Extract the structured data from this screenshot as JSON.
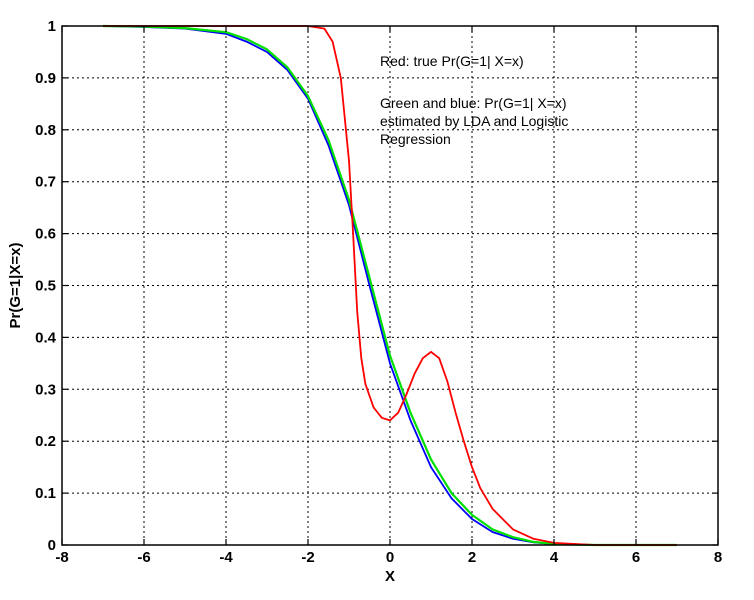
{
  "chart_data": {
    "type": "line",
    "title": "",
    "xlabel": "X",
    "ylabel": "Pr(G=1|X=x)",
    "xlim": [
      -8,
      8
    ],
    "ylim": [
      0,
      1
    ],
    "grid": true,
    "x_ticks": [
      -8,
      -6,
      -4,
      -2,
      0,
      2,
      4,
      6,
      8
    ],
    "y_ticks": [
      0,
      0.1,
      0.2,
      0.3,
      0.4,
      0.5,
      0.6,
      0.7,
      0.8,
      0.9,
      1
    ],
    "annotations": [
      "Red: true Pr(G=1| X=x)",
      "Green and blue: Pr(G=1| X=x)",
      "estimated by LDA and Logistic",
      "Regression"
    ],
    "series": [
      {
        "color": "#ff0000",
        "x": [
          -7,
          -6,
          -5,
          -4,
          -3,
          -2,
          -1.6,
          -1.4,
          -1.2,
          -1.0,
          -0.9,
          -0.8,
          -0.7,
          -0.6,
          -0.4,
          -0.2,
          0,
          0.2,
          0.4,
          0.6,
          0.8,
          1.0,
          1.2,
          1.4,
          1.6,
          1.8,
          2.0,
          2.2,
          2.5,
          3.0,
          3.5,
          4.0,
          5.0,
          6.0,
          7.0
        ],
        "y": [
          1.0,
          1.0,
          1.0,
          1.0,
          1.0,
          1.0,
          0.995,
          0.97,
          0.9,
          0.74,
          0.6,
          0.45,
          0.36,
          0.31,
          0.265,
          0.245,
          0.24,
          0.255,
          0.29,
          0.33,
          0.36,
          0.372,
          0.36,
          0.315,
          0.255,
          0.2,
          0.15,
          0.11,
          0.07,
          0.03,
          0.012,
          0.004,
          0.0,
          0.0,
          0.0
        ]
      },
      {
        "color": "#0000ff",
        "x": [
          -7,
          -6,
          -5,
          -4,
          -3.5,
          -3,
          -2.5,
          -2,
          -1.5,
          -1,
          -0.5,
          0,
          0.5,
          1,
          1.5,
          2,
          2.5,
          3,
          3.5,
          4,
          5,
          6,
          7
        ],
        "y": [
          1.0,
          0.998,
          0.995,
          0.985,
          0.97,
          0.95,
          0.915,
          0.86,
          0.77,
          0.655,
          0.5,
          0.35,
          0.24,
          0.15,
          0.09,
          0.05,
          0.025,
          0.012,
          0.005,
          0.002,
          0.0,
          0.0,
          0.0
        ]
      },
      {
        "color": "#00e000",
        "x": [
          -7,
          -6,
          -5,
          -4,
          -3.5,
          -3,
          -2.5,
          -2,
          -1.5,
          -1,
          -0.5,
          0,
          0.5,
          1,
          1.5,
          2,
          2.5,
          3,
          3.5,
          4,
          5,
          6,
          7
        ],
        "y": [
          1.0,
          0.999,
          0.996,
          0.988,
          0.975,
          0.955,
          0.92,
          0.865,
          0.78,
          0.665,
          0.515,
          0.365,
          0.255,
          0.165,
          0.1,
          0.058,
          0.03,
          0.015,
          0.006,
          0.002,
          0.0,
          0.0,
          0.0
        ]
      }
    ]
  }
}
